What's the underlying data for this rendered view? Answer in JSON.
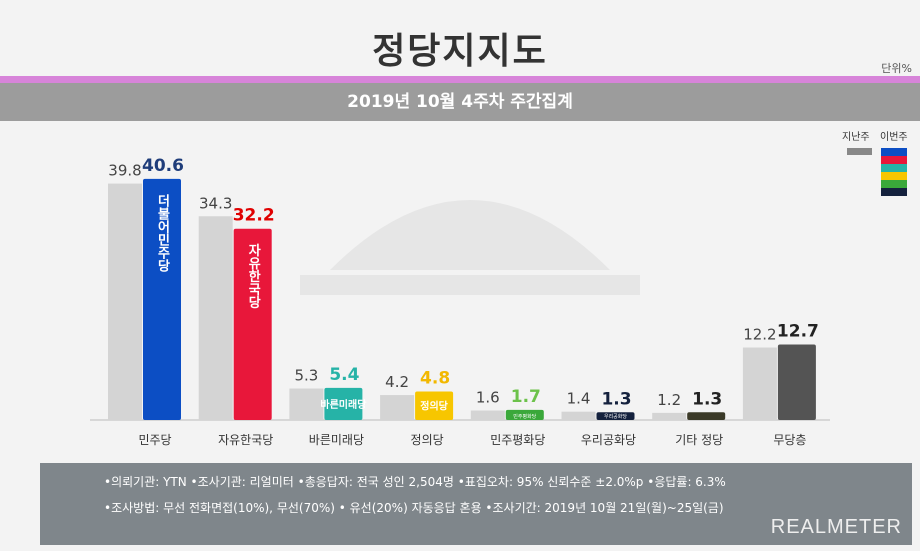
{
  "header": {
    "title": "정당지지도",
    "unit": "단위%",
    "subtitle": "2019년 10월 4주차 주간집계"
  },
  "chart_data": {
    "type": "bar",
    "categories": [
      "민주당",
      "자유한국당",
      "바른미래당",
      "정의당",
      "민주평화당",
      "우리공화당",
      "기타 정당",
      "무당층"
    ],
    "series": [
      {
        "name": "지난주",
        "values": [
          39.8,
          34.3,
          5.3,
          4.2,
          1.6,
          1.4,
          1.2,
          12.2
        ]
      },
      {
        "name": "이번주",
        "values": [
          40.6,
          32.2,
          5.4,
          4.8,
          1.7,
          1.3,
          1.3,
          12.7
        ]
      }
    ],
    "prev_color": "#d4d4d4",
    "current_colors": [
      "#0c4ec4",
      "#e8173a",
      "#26b3a7",
      "#f7c600",
      "#3aa83a",
      "#14213d",
      "#3b3a28",
      "#545454"
    ],
    "current_label_colors": [
      "#1f3d7a",
      "#e00000",
      "#26b3a7",
      "#f2b800",
      "#6cc24a",
      "#14213d",
      "#222222",
      "#222222"
    ],
    "bar_logos": [
      "더불어민주당",
      "자유한국당",
      "바른미래당",
      "정의당",
      "민주평화당",
      "우리공화당",
      "",
      ""
    ],
    "ylim": [
      0,
      42
    ],
    "legend_position": "top-right"
  },
  "legend": {
    "prev": "지난주",
    "current": "이번주"
  },
  "footer": {
    "line1": "•의뢰기관: YTN •조사기관: 리얼미터 •총응답자: 전국 성인 2,504명 •표집오차: 95% 신뢰수준 ±2.0%p •응답률: 6.3%",
    "line2": "•조사방법: 무선 전화면접(10%), 무선(70%) • 유선(20%) 자동응답 혼용  •조사기간: 2019년 10월 21일(월)~25일(금)",
    "brand": "REALMETER"
  }
}
